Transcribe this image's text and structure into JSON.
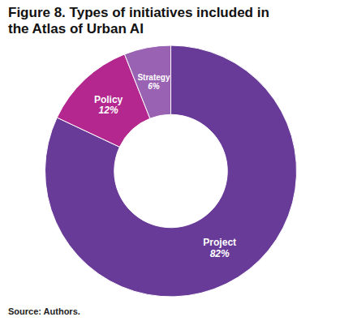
{
  "chart_data": {
    "type": "pie",
    "title": "Figure 8. Types of initiatives included in the Atlas of Urban AI",
    "caption": "Source: Authors.",
    "categories": [
      "Project",
      "Policy",
      "Strategy"
    ],
    "values": [
      82,
      12,
      6
    ],
    "value_labels": [
      "82%",
      "12%",
      "6%"
    ],
    "colors": [
      "#693b98",
      "#b3278f",
      "#9a62b3"
    ],
    "data_labels": true
  }
}
